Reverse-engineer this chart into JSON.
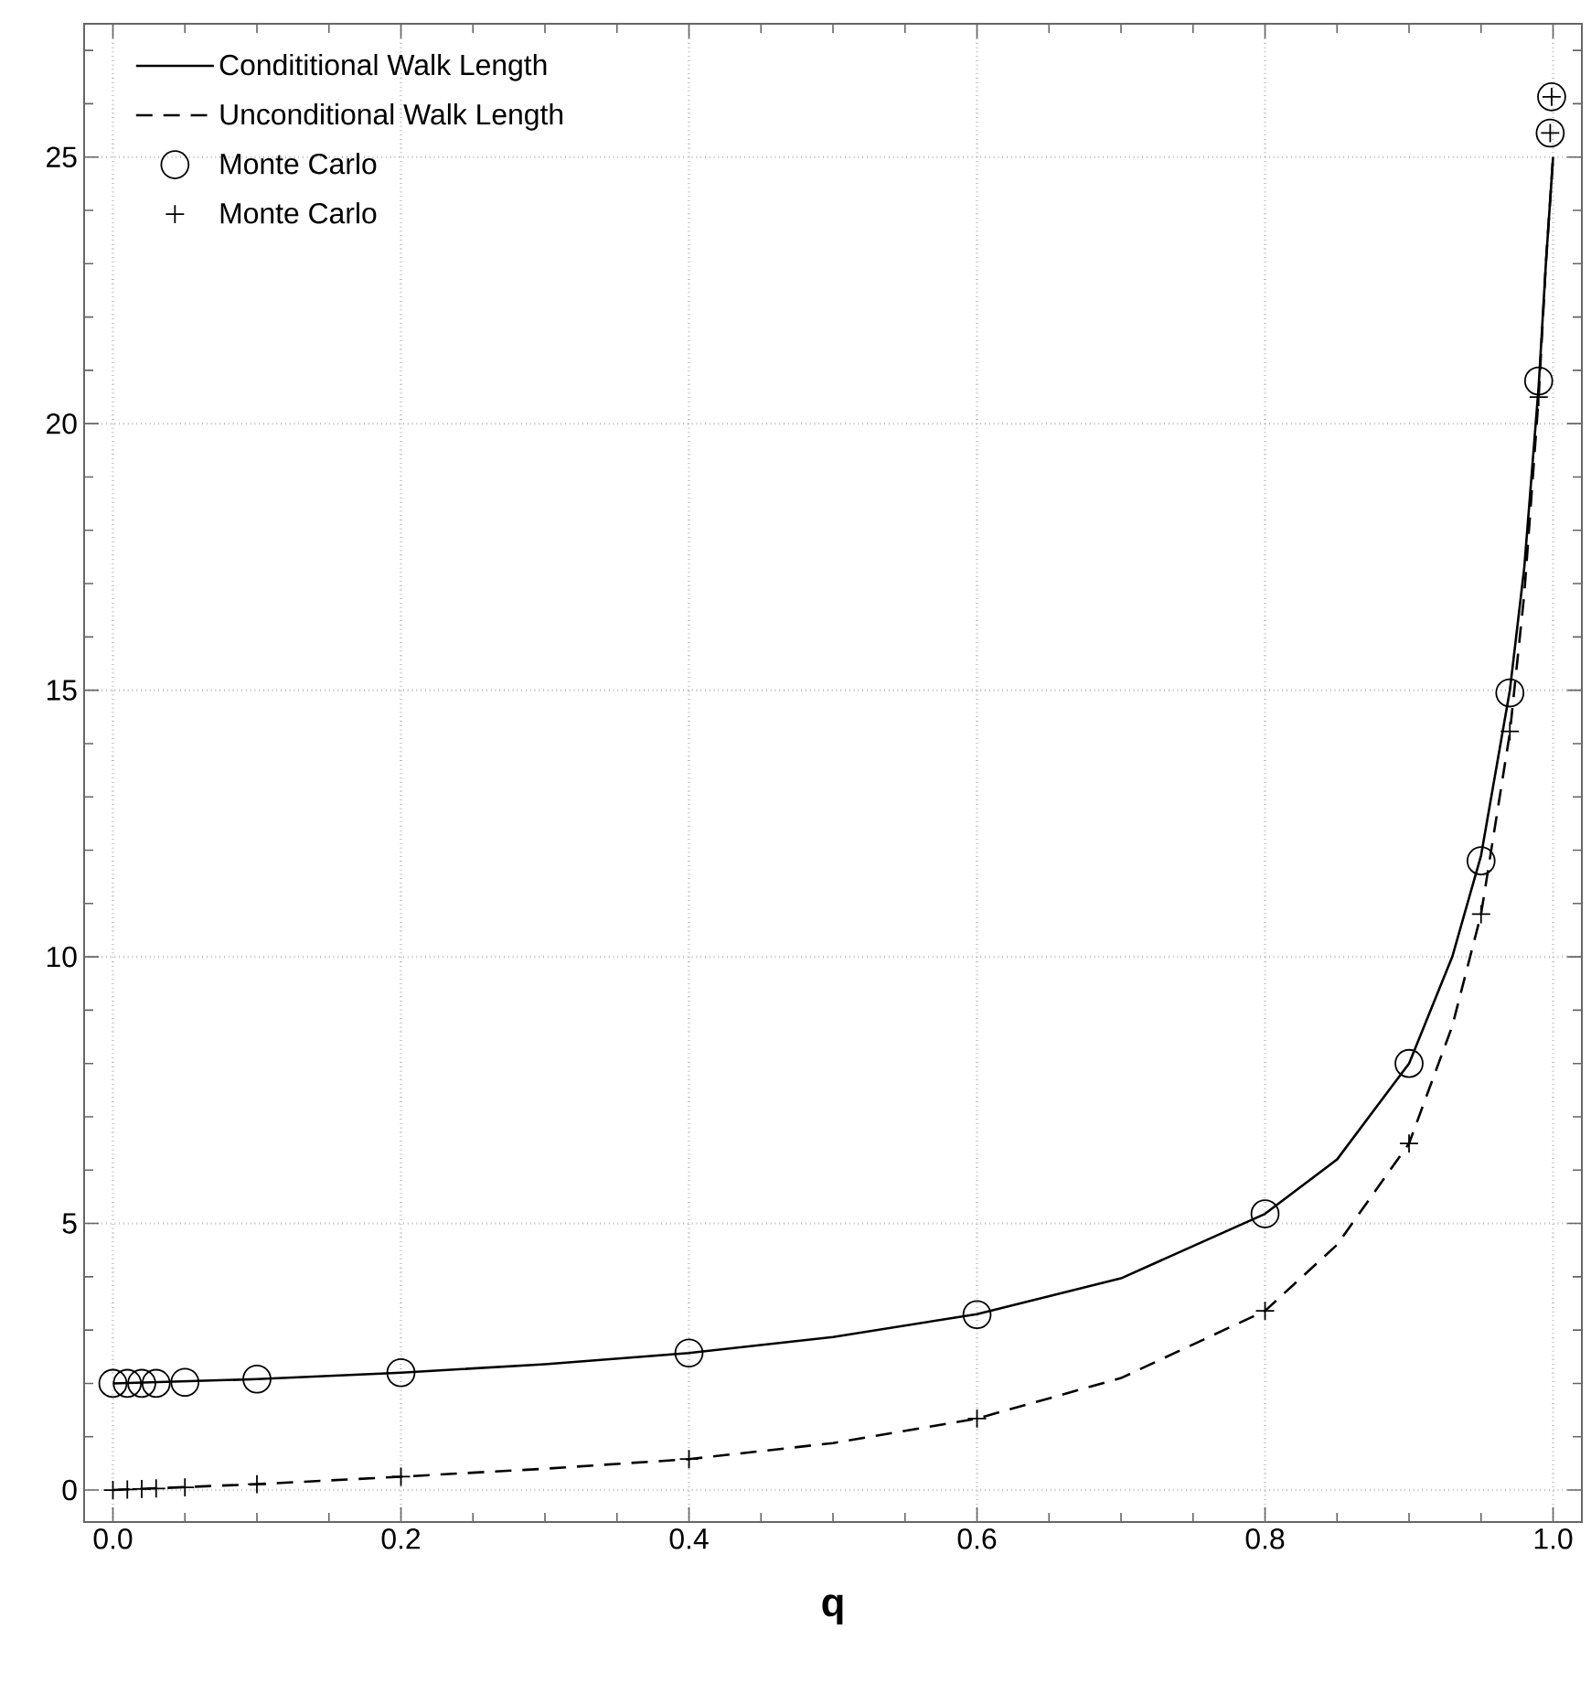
{
  "chart_data": {
    "type": "line",
    "xlabel": "q",
    "xlim": [
      -0.02,
      1.02
    ],
    "ylim": [
      -0.6,
      27.5
    ],
    "xticks": [
      {
        "value": 0,
        "label": "0.0"
      },
      {
        "value": 0.05,
        "label": null
      },
      {
        "value": 0.1,
        "label": null
      },
      {
        "value": 0.15,
        "label": null
      },
      0.2,
      {
        "value": 0.25,
        "label": null
      },
      {
        "value": 0.3,
        "label": null
      },
      {
        "value": 0.35,
        "label": null
      },
      0.4,
      {
        "value": 0.45,
        "label": null
      },
      {
        "value": 0.5,
        "label": null
      },
      {
        "value": 0.55,
        "label": null
      },
      0.6,
      {
        "value": 0.65,
        "label": null
      },
      {
        "value": 0.7,
        "label": null
      },
      {
        "value": 0.75,
        "label": null
      },
      0.8,
      {
        "value": 0.85,
        "label": null
      },
      {
        "value": 0.9,
        "label": null
      },
      {
        "value": 0.95,
        "label": null
      },
      {
        "value": 1,
        "label": "1.0"
      }
    ],
    "yticks": [
      0,
      {
        "value": 1,
        "label": null
      },
      {
        "value": 2,
        "label": null
      },
      {
        "value": 3,
        "label": null
      },
      {
        "value": 4,
        "label": null
      },
      5,
      {
        "value": 6,
        "label": null
      },
      {
        "value": 7,
        "label": null
      },
      {
        "value": 8,
        "label": null
      },
      {
        "value": 9,
        "label": null
      },
      10,
      {
        "value": 11,
        "label": null
      },
      {
        "value": 12,
        "label": null
      },
      {
        "value": 13,
        "label": null
      },
      {
        "value": 14,
        "label": null
      },
      15,
      {
        "value": 16,
        "label": null
      },
      {
        "value": 17,
        "label": null
      },
      {
        "value": 18,
        "label": null
      },
      {
        "value": 19,
        "label": null
      },
      20,
      {
        "value": 21,
        "label": null
      },
      {
        "value": 22,
        "label": null
      },
      {
        "value": 23,
        "label": null
      },
      {
        "value": 24,
        "label": null
      },
      25,
      {
        "value": 26,
        "label": null
      },
      {
        "value": 27,
        "label": null
      }
    ],
    "grid": true,
    "legend": "top left",
    "series": [
      {
        "name": "Condititional Walk Length",
        "line_style": "solid",
        "marker": "none",
        "color": "#000000",
        "x": [
          0,
          0.1,
          0.2,
          0.3,
          0.4,
          0.5,
          0.6,
          0.7,
          0.8,
          0.85,
          0.9,
          0.93,
          0.95,
          0.97,
          0.98,
          0.99,
          0.995,
          1.0
        ],
        "values": [
          2.0,
          2.08,
          2.2,
          2.36,
          2.57,
          2.87,
          3.3,
          3.97,
          5.18,
          6.2,
          8.0,
          10.0,
          11.9,
          15.0,
          17.3,
          20.7,
          23.0,
          25.0
        ]
      },
      {
        "name": "Unconditional Walk Length",
        "line_style": "dashed",
        "marker": "none",
        "color": "#000000",
        "x": [
          0,
          0.1,
          0.2,
          0.3,
          0.4,
          0.5,
          0.6,
          0.7,
          0.8,
          0.85,
          0.9,
          0.93,
          0.95,
          0.97,
          0.98,
          0.99,
          0.995,
          1.0
        ],
        "values": [
          0,
          0.11,
          0.25,
          0.4,
          0.58,
          0.88,
          1.34,
          2.1,
          3.36,
          4.6,
          6.5,
          8.7,
          10.8,
          14.2,
          16.8,
          20.5,
          23.0,
          25.0
        ]
      },
      {
        "name": "Monte Carlo",
        "type": "scatter",
        "marker": "circle",
        "color": "#000000",
        "x": [
          0,
          0.01,
          0.02,
          0.03,
          0.05,
          0.1,
          0.2,
          0.4,
          0.6,
          0.8,
          0.9,
          0.95,
          0.97,
          0.99,
          0.998,
          0.999
        ],
        "values": [
          2.0,
          2.0,
          2.0,
          2.0,
          2.02,
          2.08,
          2.2,
          2.57,
          3.29,
          5.18,
          8.0,
          11.8,
          14.95,
          20.8,
          25.45,
          26.13
        ]
      },
      {
        "name": "Monte Carlo",
        "type": "scatter",
        "marker": "cross",
        "color": "#000000",
        "x": [
          0,
          0.01,
          0.02,
          0.03,
          0.05,
          0.1,
          0.2,
          0.4,
          0.6,
          0.8,
          0.9,
          0.95,
          0.97,
          0.99,
          0.998,
          0.999
        ],
        "values": [
          0,
          0.01,
          0.02,
          0.03,
          0.05,
          0.11,
          0.25,
          0.58,
          1.34,
          3.36,
          6.5,
          10.8,
          14.23,
          20.5,
          25.45,
          26.13
        ]
      }
    ]
  }
}
